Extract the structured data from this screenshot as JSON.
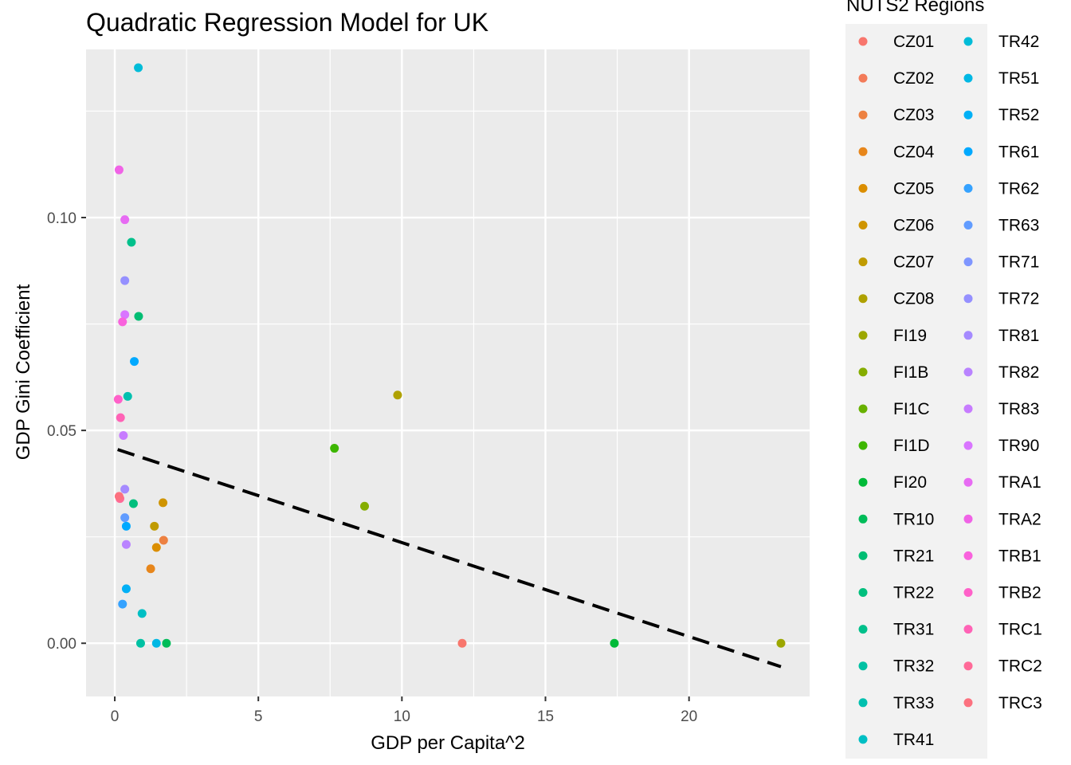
{
  "chart_data": {
    "type": "scatter",
    "title": "Quadratic Regression Model for UK",
    "xlabel": "GDP per Capita^2",
    "ylabel": "GDP Gini Coefficient",
    "xlim": [
      -1.0,
      24.2
    ],
    "ylim": [
      -0.0125,
      0.1395
    ],
    "xticks": [
      0,
      5,
      10,
      15,
      20
    ],
    "xtick_labels": [
      "0",
      "5",
      "10",
      "15",
      "20"
    ],
    "yticks": [
      0.0,
      0.05,
      0.1
    ],
    "ytick_labels": [
      "0.00",
      "0.05",
      "0.10"
    ],
    "grid": true,
    "legend": {
      "title": "NUTS2 Regions",
      "position": "right",
      "columns": 2
    },
    "fit_line": {
      "style": "dashed",
      "color": "#000000",
      "x": [
        0.1,
        23.2
      ],
      "y": [
        0.0455,
        -0.0055
      ]
    },
    "series": [
      {
        "name": "CZ01",
        "color": "#F8766D",
        "points": [
          [
            12.1,
            0.0
          ]
        ]
      },
      {
        "name": "CZ02",
        "color": "#F37B59",
        "points": []
      },
      {
        "name": "CZ03",
        "color": "#ED8141",
        "points": [
          [
            1.7,
            0.0242
          ]
        ]
      },
      {
        "name": "CZ04",
        "color": "#E7861B",
        "points": [
          [
            1.25,
            0.0175
          ]
        ]
      },
      {
        "name": "CZ05",
        "color": "#DB8E00",
        "points": [
          [
            1.45,
            0.0225
          ]
        ]
      },
      {
        "name": "CZ06",
        "color": "#CF9400",
        "points": [
          [
            1.68,
            0.033
          ]
        ]
      },
      {
        "name": "CZ07",
        "color": "#C09B00",
        "points": [
          [
            1.38,
            0.0275
          ]
        ]
      },
      {
        "name": "CZ08",
        "color": "#AFA100",
        "points": [
          [
            9.85,
            0.0583
          ]
        ]
      },
      {
        "name": "FI19",
        "color": "#9CA700",
        "points": [
          [
            23.2,
            0.0
          ]
        ]
      },
      {
        "name": "FI1B",
        "color": "#85AD00",
        "points": [
          [
            8.7,
            0.0322
          ]
        ]
      },
      {
        "name": "FI1C",
        "color": "#68B100",
        "points": []
      },
      {
        "name": "FI1D",
        "color": "#3DB600",
        "points": [
          [
            7.65,
            0.0458
          ]
        ]
      },
      {
        "name": "FI20",
        "color": "#00BA38",
        "points": [
          [
            17.4,
            0.0
          ]
        ]
      },
      {
        "name": "TR10",
        "color": "#00BC59",
        "points": [
          [
            1.8,
            0.0
          ]
        ]
      },
      {
        "name": "TR21",
        "color": "#00BD73",
        "points": [
          [
            0.83,
            0.0768
          ]
        ]
      },
      {
        "name": "TR22",
        "color": "#00BF7D",
        "points": [
          [
            0.65,
            0.0328
          ]
        ]
      },
      {
        "name": "TR31",
        "color": "#00C08B",
        "points": [
          [
            0.58,
            0.0942
          ]
        ]
      },
      {
        "name": "TR32",
        "color": "#00C1A3",
        "points": [
          [
            0.9,
            0.0
          ]
        ]
      },
      {
        "name": "TR33",
        "color": "#00C0AF",
        "points": [
          [
            0.45,
            0.058
          ]
        ]
      },
      {
        "name": "TR41",
        "color": "#00BFC4",
        "points": [
          [
            0.95,
            0.007
          ]
        ]
      },
      {
        "name": "TR42",
        "color": "#00BCD8",
        "points": [
          [
            0.82,
            0.1352
          ]
        ]
      },
      {
        "name": "TR51",
        "color": "#00B8E4",
        "points": [
          [
            1.45,
            0.0
          ]
        ]
      },
      {
        "name": "TR52",
        "color": "#00B0F6",
        "points": [
          [
            0.4,
            0.0128
          ]
        ]
      },
      {
        "name": "TR61",
        "color": "#00A9FF",
        "points": [
          [
            0.68,
            0.0662
          ],
          [
            0.4,
            0.0275
          ]
        ]
      },
      {
        "name": "TR62",
        "color": "#35A2FF",
        "points": [
          [
            0.27,
            0.0092
          ]
        ]
      },
      {
        "name": "TR63",
        "color": "#619CFF",
        "points": [
          [
            0.35,
            0.0295
          ]
        ]
      },
      {
        "name": "TR71",
        "color": "#7F96FF",
        "points": []
      },
      {
        "name": "TR72",
        "color": "#9590FF",
        "points": [
          [
            0.35,
            0.0852
          ]
        ]
      },
      {
        "name": "TR81",
        "color": "#A58AFF",
        "points": [
          [
            0.35,
            0.0362
          ]
        ]
      },
      {
        "name": "TR82",
        "color": "#B983FF",
        "points": [
          [
            0.4,
            0.0232
          ]
        ]
      },
      {
        "name": "TR83",
        "color": "#C77CFF",
        "points": [
          [
            0.3,
            0.0488
          ]
        ]
      },
      {
        "name": "TR90",
        "color": "#D975FF",
        "points": [
          [
            0.35,
            0.0772
          ]
        ]
      },
      {
        "name": "TRA1",
        "color": "#E76BF3",
        "points": [
          [
            0.35,
            0.0995
          ]
        ]
      },
      {
        "name": "TRA2",
        "color": "#F063E6",
        "points": [
          [
            0.15,
            0.1112
          ]
        ]
      },
      {
        "name": "TRB1",
        "color": "#F962DD",
        "points": [
          [
            0.27,
            0.0755
          ]
        ]
      },
      {
        "name": "TRB2",
        "color": "#FF61C9",
        "points": [
          [
            0.12,
            0.0573
          ]
        ]
      },
      {
        "name": "TRC1",
        "color": "#FF63B6",
        "points": [
          [
            0.2,
            0.053
          ]
        ]
      },
      {
        "name": "TRC2",
        "color": "#FF6A98",
        "points": [
          [
            0.18,
            0.034
          ]
        ]
      },
      {
        "name": "TRC3",
        "color": "#FC717F",
        "points": [
          [
            0.15,
            0.0345
          ]
        ]
      }
    ]
  }
}
